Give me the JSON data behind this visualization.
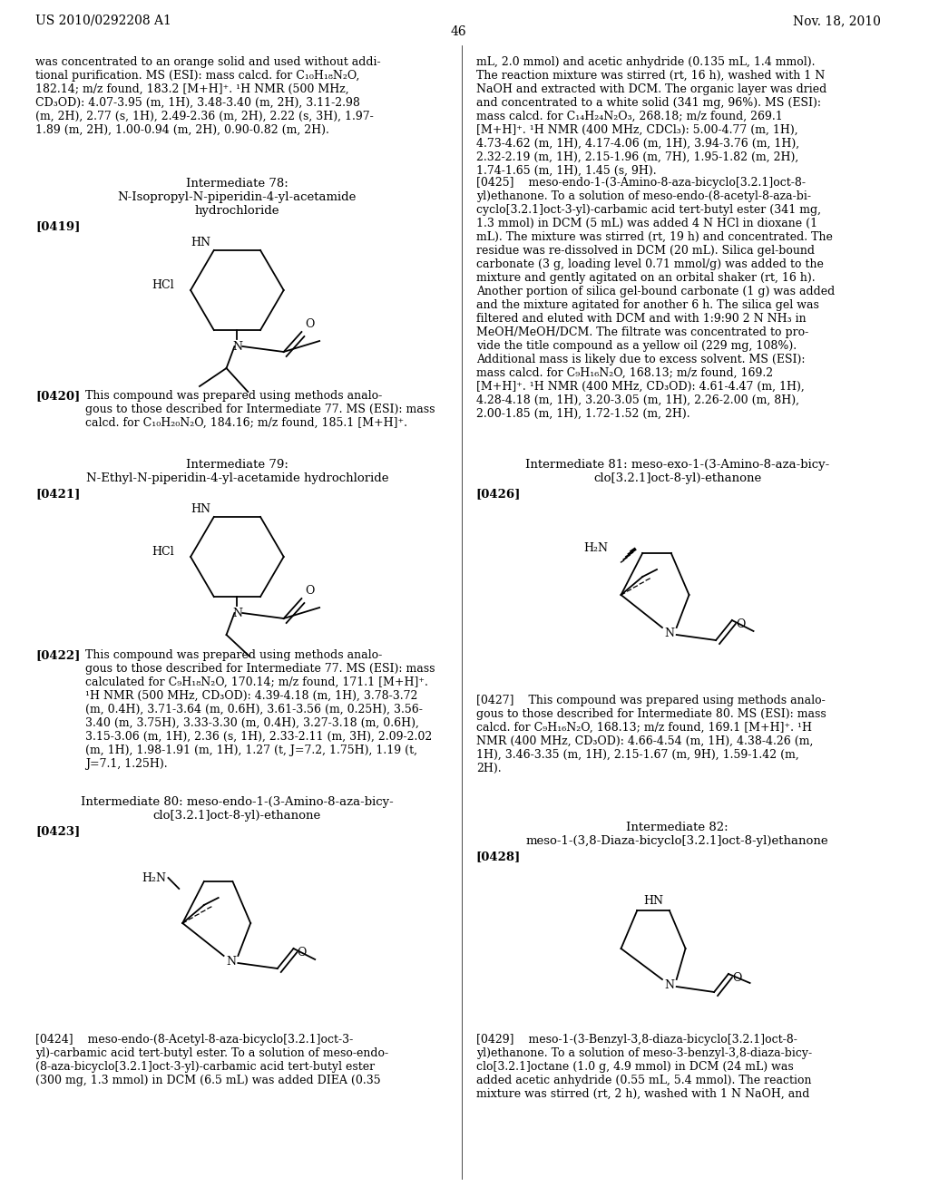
{
  "page_header_left": "US 2010/0292208 A1",
  "page_header_right": "Nov. 18, 2010",
  "page_number": "46",
  "background_color": "#ffffff",
  "text_color": "#000000",
  "font_size_body": 9.0,
  "font_size_header": 10,
  "font_size_label": 9.5
}
